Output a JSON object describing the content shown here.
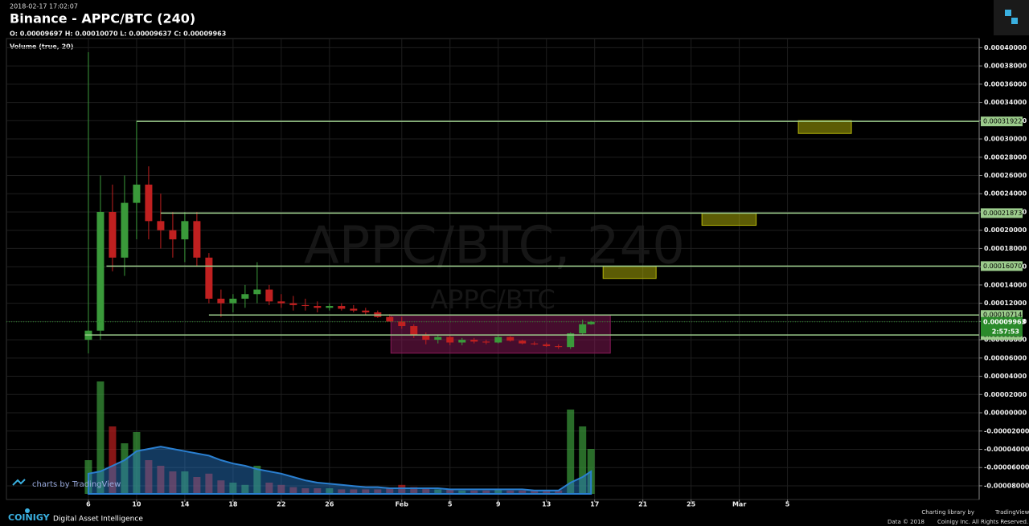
{
  "header": {
    "timestamp": "2018-02-17 17:02:07",
    "title": "Binance - APPC/BTC (240)",
    "ohlc": "O: 0.00009697 H: 0.00010070 L: 0.00009637 C: 0.00009963",
    "study": "Volume (true, 20)"
  },
  "footer": {
    "brand": "COINIGY",
    "tagline": "Digital Asset Intelligence",
    "credit": "charts by TradingView",
    "library": "Charting library by",
    "library_name": "TradingView",
    "data": "Data © 2018",
    "rights": "Coinigy Inc. All Rights Reserved."
  },
  "chart_data": {
    "type": "candlestick",
    "watermark": "APPC/BTC, 240",
    "watermark_sub": "APPC/BTC",
    "x": [
      0,
      1,
      2,
      3,
      4,
      5,
      6,
      7,
      8,
      9,
      10,
      11,
      12,
      13,
      14,
      15,
      16,
      17,
      18,
      19,
      20,
      21,
      22,
      23,
      24,
      25,
      26,
      27,
      28,
      29,
      30,
      31,
      32,
      33,
      34,
      35,
      36,
      37,
      38,
      39,
      40,
      41,
      41.7
    ],
    "open": [
      8e-05,
      9e-05,
      0.00022,
      0.00017,
      0.00023,
      0.00025,
      0.00021,
      0.0002,
      0.00019,
      0.00021,
      0.00017,
      0.000125,
      0.00012,
      0.000125,
      0.00013,
      0.000135,
      0.000122,
      0.00012,
      0.000118,
      0.000117,
      0.000115,
      0.000117,
      0.000114,
      0.000112,
      0.00011,
      0.000105,
      0.0001,
      9.5e-05,
      8.5e-05,
      8e-05,
      8.3e-05,
      7.7e-05,
      8e-05,
      7.8e-05,
      7.7e-05,
      8.3e-05,
      7.9e-05,
      7.6e-05,
      7.5e-05,
      7.3e-05,
      7.2e-05,
      8.7e-05,
      9.697e-05
    ],
    "high": [
      0.000395,
      0.00026,
      0.00025,
      0.00026,
      0.00032,
      0.00027,
      0.00024,
      0.00022,
      0.00022,
      0.00022,
      0.000175,
      0.000135,
      0.00013,
      0.00014,
      0.000165,
      0.00014,
      0.00013,
      0.000128,
      0.000125,
      0.000122,
      0.00012,
      0.00012,
      0.000118,
      0.000115,
      0.000112,
      0.000108,
      0.000105,
      9.7e-05,
      8.8e-05,
      8.5e-05,
      8.5e-05,
      8.2e-05,
      8.2e-05,
      8e-05,
      8.5e-05,
      8.4e-05,
      8e-05,
      7.8e-05,
      7.7e-05,
      7.5e-05,
      8.8e-05,
      0.000102,
      0.0001007
    ],
    "low": [
      6.5e-05,
      8e-05,
      0.000155,
      0.00015,
      0.00019,
      0.00019,
      0.00018,
      0.00017,
      0.000165,
      0.00016,
      0.00012,
      0.000105,
      0.00011,
      0.000115,
      0.00012,
      0.000118,
      0.000115,
      0.000112,
      0.000112,
      0.00011,
      0.000112,
      0.000112,
      0.00011,
      0.000107,
      0.000104,
      0.0001,
      9.2e-05,
      8.2e-05,
      7.5e-05,
      7.6e-05,
      7.4e-05,
      7.4e-05,
      7.6e-05,
      7.5e-05,
      7.6e-05,
      7.8e-05,
      7.5e-05,
      7.4e-05,
      7.2e-05,
      7e-05,
      7e-05,
      8.5e-05,
      9.637e-05
    ],
    "close": [
      9e-05,
      0.00022,
      0.00017,
      0.00023,
      0.00025,
      0.00021,
      0.0002,
      0.00019,
      0.00021,
      0.00017,
      0.000125,
      0.00012,
      0.000125,
      0.00013,
      0.000135,
      0.000122,
      0.00012,
      0.000118,
      0.000117,
      0.000115,
      0.000117,
      0.000114,
      0.000112,
      0.00011,
      0.000105,
      0.0001,
      9.5e-05,
      8.5e-05,
      8e-05,
      8.3e-05,
      7.7e-05,
      8e-05,
      7.8e-05,
      7.7e-05,
      8.3e-05,
      7.9e-05,
      7.6e-05,
      7.5e-05,
      7.3e-05,
      7.2e-05,
      8.7e-05,
      9.7e-05,
      9.963e-05
    ],
    "volume": [
      30,
      100,
      60,
      45,
      55,
      30,
      25,
      20,
      20,
      15,
      18,
      12,
      10,
      8,
      25,
      10,
      8,
      6,
      5,
      5,
      5,
      4,
      4,
      4,
      4,
      5,
      8,
      6,
      5,
      4,
      4,
      3,
      3,
      3,
      4,
      3,
      3,
      3,
      3,
      3,
      75,
      60,
      40
    ],
    "volume_ma": [
      18,
      20,
      25,
      30,
      38,
      40,
      42,
      40,
      38,
      36,
      34,
      30,
      27,
      25,
      22,
      20,
      18,
      15,
      12,
      10,
      9,
      8,
      7,
      6,
      6,
      5,
      5,
      5,
      5,
      5,
      4,
      4,
      4,
      4,
      4,
      4,
      4,
      3,
      3,
      3,
      10,
      15,
      20
    ],
    "up_color": "#3a9a3a",
    "down_color": "#c02020",
    "volume_ma_color": "#2a7fd0",
    "xlim": [
      -6.8,
      73.9
    ],
    "ylim": [
      -9.5e-05,
      0.00041
    ],
    "y2lim": [
      0,
      100
    ],
    "xticks": [
      {
        "value": 0,
        "label": "6"
      },
      {
        "value": 4,
        "label": "10"
      },
      {
        "value": 8,
        "label": "14"
      },
      {
        "value": 12,
        "label": "18"
      },
      {
        "value": 16,
        "label": "22"
      },
      {
        "value": 20,
        "label": "26"
      },
      {
        "value": 26,
        "label": "Feb"
      },
      {
        "value": 30,
        "label": "5"
      },
      {
        "value": 34,
        "label": "9"
      },
      {
        "value": 38,
        "label": "13"
      },
      {
        "value": 42,
        "label": "17"
      },
      {
        "value": 46,
        "label": "21"
      },
      {
        "value": 50,
        "label": "25"
      },
      {
        "value": 54,
        "label": "Mar"
      },
      {
        "value": 58,
        "label": "5"
      }
    ],
    "yticks": [
      {
        "value": 0.0004,
        "label": "0.00040000"
      },
      {
        "value": 0.00038,
        "label": "0.00038000"
      },
      {
        "value": 0.00036,
        "label": "0.00036000"
      },
      {
        "value": 0.00034,
        "label": "0.00034000"
      },
      {
        "value": 0.00032,
        "label": "0.00032000"
      },
      {
        "value": 0.0003,
        "label": "0.00030000"
      },
      {
        "value": 0.00028,
        "label": "0.00028000"
      },
      {
        "value": 0.00026,
        "label": "0.00026000"
      },
      {
        "value": 0.00024,
        "label": "0.00024000"
      },
      {
        "value": 0.00022,
        "label": "0.00022000"
      },
      {
        "value": 0.0002,
        "label": "0.00020000"
      },
      {
        "value": 0.00018,
        "label": "0.00018000"
      },
      {
        "value": 0.00016,
        "label": "0.00016000"
      },
      {
        "value": 0.00014,
        "label": "0.00014000"
      },
      {
        "value": 0.00012,
        "label": "0.00012000"
      },
      {
        "value": 0.0001,
        "label": "0.00010000"
      },
      {
        "value": 8e-05,
        "label": "0.00008000"
      },
      {
        "value": 6e-05,
        "label": "0.00006000"
      },
      {
        "value": 4e-05,
        "label": "0.00004000"
      },
      {
        "value": 2e-05,
        "label": "0.00002000"
      },
      {
        "value": 0,
        "label": "0.00000000"
      },
      {
        "value": -2e-05,
        "label": "-0.00002000"
      },
      {
        "value": -4e-05,
        "label": "-0.00004000"
      },
      {
        "value": -6e-05,
        "label": "-0.00006000"
      },
      {
        "value": -8e-05,
        "label": "-0.00008000"
      }
    ],
    "grid": true,
    "levels": [
      {
        "value": 0.00031922,
        "from": 4
      },
      {
        "value": 0.00021873,
        "from": 6
      },
      {
        "value": {
          "value": 0.0001607,
          "label": "0.00016070"
        },
        "from": 1.5
      },
      {
        "value": 0.00010714,
        "from": 10
      },
      {
        "value": 8.523e-05,
        "from": -0.3
      }
    ],
    "level_color": "#9ccc8c",
    "last_price": 9.963e-05,
    "countdown": "2:57:53",
    "last_color": "#2a8a2a",
    "shapes": [
      {
        "x": [
          58.9,
          63.3
        ],
        "y": [
          0.000306,
          0.00032
        ],
        "color": "#b8b80a"
      },
      {
        "x": [
          50.9,
          55.4
        ],
        "y": [
          0.0002054,
          0.0002186
        ],
        "color": "#b8b80a"
      },
      {
        "x": [
          42.7,
          47.1
        ],
        "y": [
          0.0001472,
          0.0001604
        ],
        "color": "#b8b80a"
      },
      {
        "x": [
          25.1,
          43.3
        ],
        "y": [
          6.53e-05,
          0.0001067
        ],
        "color": "#8a1a5a"
      }
    ]
  }
}
